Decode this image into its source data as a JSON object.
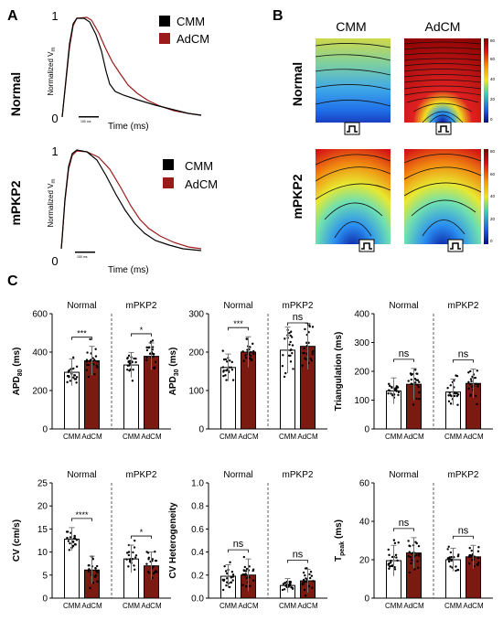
{
  "panels": {
    "a": "A",
    "b": "B",
    "c": "C"
  },
  "colors": {
    "cmm": "#000000",
    "adcm": "#9b1b1b",
    "bar_adcm": "#7a1a10"
  },
  "traces": {
    "row_labels": [
      "Normal",
      "mPKP2"
    ],
    "y_label": "Normalized V",
    "y_sub": "m",
    "x_label": "Time (ms)",
    "y_ticks": [
      "1",
      "0"
    ],
    "scale_bar": "150 ms",
    "legend": [
      "CMM",
      "AdCM"
    ]
  },
  "maps": {
    "col_labels": [
      "CMM",
      "AdCM"
    ],
    "row_labels": [
      "Normal",
      "mPKP2"
    ],
    "colorbar_ticks": [
      "80",
      "60",
      "40",
      "20",
      "0"
    ]
  },
  "chart_data": [
    {
      "type": "bar",
      "condition_labels": [
        "Normal",
        "mPKP2"
      ],
      "categories": [
        "CMM",
        "AdCM"
      ],
      "ylabel": "APD80 (ms)",
      "ylabel_main": "APD",
      "ylabel_sub": "80",
      "ylabel_unit": "(ms)",
      "ylim": [
        0,
        600
      ],
      "yticks": [
        "0",
        "200",
        "400",
        "600"
      ],
      "values": [
        [
          295,
          355
        ],
        [
          333,
          378
        ]
      ],
      "errors": [
        [
          70,
          75
        ],
        [
          65,
          70
        ]
      ],
      "significance": [
        "***",
        "*"
      ]
    },
    {
      "type": "bar",
      "condition_labels": [
        "Normal",
        "mPKP2"
      ],
      "categories": [
        "CMM",
        "AdCM"
      ],
      "ylabel": "APD30 (ms)",
      "ylabel_main": "APD",
      "ylabel_sub": "30",
      "ylabel_unit": "(ms)",
      "ylim": [
        0,
        300
      ],
      "yticks": [
        "0",
        "100",
        "200",
        "300"
      ],
      "values": [
        [
          160,
          200
        ],
        [
          205,
          215
        ]
      ],
      "errors": [
        [
          35,
          40
        ],
        [
          60,
          60
        ]
      ],
      "significance": [
        "***",
        "ns"
      ]
    },
    {
      "type": "bar",
      "condition_labels": [
        "Normal",
        "mPKP2"
      ],
      "categories": [
        "CMM",
        "AdCM"
      ],
      "ylabel": "Triangulation (ms)",
      "ylabel_main": "Triangulation (ms)",
      "ylabel_sub": "",
      "ylabel_unit": "",
      "ylim": [
        0,
        400
      ],
      "yticks": [
        "0",
        "100",
        "200",
        "300",
        "400"
      ],
      "values": [
        [
          132,
          155
        ],
        [
          128,
          158
        ]
      ],
      "errors": [
        [
          45,
          55
        ],
        [
          45,
          50
        ]
      ],
      "significance": [
        "ns",
        "ns"
      ]
    },
    {
      "type": "bar",
      "condition_labels": [
        "Normal",
        "mPKP2"
      ],
      "categories": [
        "CMM",
        "AdCM"
      ],
      "ylabel": "CV (cm/s)",
      "ylabel_main": "CV (cm/s)",
      "ylabel_sub": "",
      "ylabel_unit": "",
      "ylim": [
        0,
        25
      ],
      "yticks": [
        "0",
        "5",
        "10",
        "15",
        "20",
        "25"
      ],
      "values": [
        [
          12.8,
          6.1
        ],
        [
          8.5,
          7.0
        ]
      ],
      "errors": [
        [
          2.5,
          3.0
        ],
        [
          3.0,
          3.0
        ]
      ],
      "significance": [
        "****",
        "*"
      ]
    },
    {
      "type": "bar",
      "condition_labels": [
        "Normal",
        "mPKP2"
      ],
      "categories": [
        "CMM",
        "AdCM"
      ],
      "ylabel": "CV Heterogeneity",
      "ylabel_main": "CV Heterogeneity",
      "ylabel_sub": "",
      "ylabel_unit": "",
      "ylim": [
        0,
        1.0
      ],
      "yticks": [
        "0.0",
        "0.2",
        "0.4",
        "0.6",
        "0.8",
        "1.0"
      ],
      "values": [
        [
          0.19,
          0.2
        ],
        [
          0.11,
          0.15
        ]
      ],
      "errors": [
        [
          0.1,
          0.14
        ],
        [
          0.06,
          0.1
        ]
      ],
      "significance": [
        "ns",
        "ns"
      ]
    },
    {
      "type": "bar",
      "condition_labels": [
        "Normal",
        "mPKP2"
      ],
      "categories": [
        "CMM",
        "AdCM"
      ],
      "ylabel": "Tpeak (ms)",
      "ylabel_main": "T",
      "ylabel_sub": "peak",
      "ylabel_unit": "(ms)",
      "ylim": [
        0,
        60
      ],
      "yticks": [
        "0",
        "20",
        "40",
        "60"
      ],
      "values": [
        [
          19.5,
          23.5
        ],
        [
          20.0,
          21.5
        ]
      ],
      "errors": [
        [
          8,
          8
        ],
        [
          6,
          6
        ]
      ],
      "significance": [
        "ns",
        "ns"
      ]
    }
  ]
}
